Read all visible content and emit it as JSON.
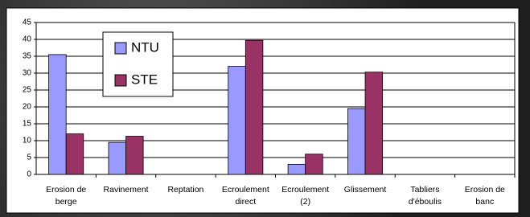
{
  "chart_data": {
    "type": "bar",
    "categories": [
      "Erosion de berge",
      "Ravinement",
      "Reptation",
      "Ecroulement direct",
      "Ecroulement (2)",
      "Glissement",
      "Tabliers d'éboulis",
      "Erosion de banc"
    ],
    "series": [
      {
        "name": "NTU",
        "color": "#9999ff",
        "values": [
          35.5,
          9.5,
          0,
          32,
          3,
          19.5,
          0,
          0
        ]
      },
      {
        "name": "STE",
        "color": "#993366",
        "values": [
          12,
          11.3,
          0,
          39.7,
          6,
          30.3,
          0,
          0
        ]
      }
    ],
    "ylim": [
      0,
      45
    ],
    "yticks": [
      0,
      5,
      10,
      15,
      20,
      25,
      30,
      35,
      40,
      45
    ],
    "grid": true,
    "legend": "upper left"
  }
}
